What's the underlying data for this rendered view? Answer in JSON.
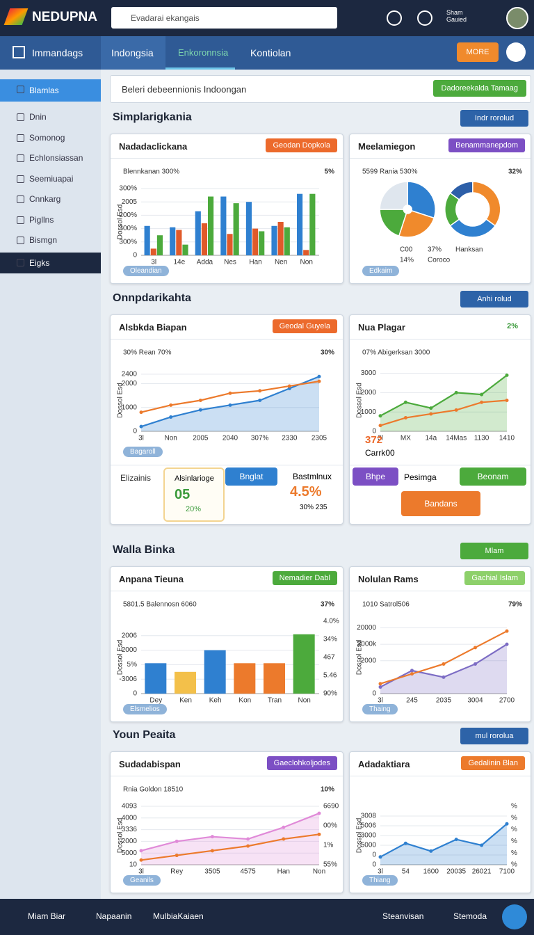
{
  "header": {
    "logo": "NEDUPNA",
    "search_placeholder": "Evadarai ekangais",
    "user": "Sham Gauied"
  },
  "nav": {
    "title": "Immandags",
    "tabs": [
      "Indongsia",
      "Enkoronnsia",
      "Kontiolan"
    ],
    "badge": "MORE"
  },
  "sidebar": {
    "items": [
      "Blamlas",
      "Dnin",
      "Somonog",
      "Echlonsiassan",
      "Seemiuapai",
      "Cnnkarg",
      "Pigllns",
      "Bismgn",
      "Eigks"
    ]
  },
  "banner": {
    "text": "Beleri debeennionis Indoongan",
    "button": "Dadoreekalda Tamaag"
  },
  "sections": [
    {
      "title": "Simplarigkania",
      "dropdown": "Indr rorolud",
      "panels": [
        {
          "title": "Nadadaclickana",
          "badge": "Geodan Dopkola",
          "badge_color": "#ec6a2c",
          "caption": "Oleandian",
          "chart": {
            "type": "bar",
            "note": "Blennkanan 300%",
            "corner": "5%",
            "ylabel": "Dossol Esd",
            "categories": [
              "3l",
              "14e",
              "Adda",
              "Nes",
              "Han",
              "Nen",
              "Non"
            ],
            "ylim": [
              0,
              5
            ],
            "yticks": [
              0,
              {
                "value": 1,
                "label": "300%"
              },
              {
                "value": 2,
                "label": "300%"
              },
              {
                "value": 3,
                "label": "200%"
              },
              {
                "value": 4,
                "label": "2005"
              },
              {
                "value": 5,
                "label": "300%"
              }
            ],
            "series": [
              {
                "color": "#2f80d0",
                "values": [
                  2.2,
                  2.1,
                  3.3,
                  4.4,
                  4.0,
                  2.2,
                  4.6
                ]
              },
              {
                "color": "#e05a2a",
                "values": [
                  0.5,
                  1.9,
                  2.4,
                  1.6,
                  2.0,
                  2.5,
                  0.4
                ]
              },
              {
                "color": "#4caa3c",
                "values": [
                  1.5,
                  0.8,
                  4.4,
                  3.9,
                  1.8,
                  2.1,
                  4.6
                ]
              }
            ]
          }
        },
        {
          "title": "Meelamiegon",
          "badge": "Benammanepdom",
          "badge_color": "#7c4fc4",
          "caption": "Edkaim",
          "chart": {
            "type": "donut",
            "note": "5599 Rania 530%",
            "corner": "32%",
            "legend": [
              "C00",
              "37%",
              "Hanksan",
              "14%",
              "Coroco"
            ],
            "series": [
              {
                "values": [
                  30,
                  25,
                  20,
                  25
                ],
                "colors": [
                  "#2f80d0",
                  "#f08a2c",
                  "#4caa3c",
                  "#dfe6ee"
                ]
              },
              {
                "values": [
                  35,
                  30,
                  20,
                  15
                ],
                "colors": [
                  "#f08a2c",
                  "#2f80d0",
                  "#4caa3c",
                  "#2d5fa8"
                ]
              }
            ]
          }
        }
      ]
    },
    {
      "title": "Onnpdarikahta",
      "dropdown": "Anhi rolud",
      "panels": [
        {
          "title": "Alsbkda Biapan",
          "badge": "Geodal Guyela",
          "badge_color": "#ec6a2c",
          "caption": "Bagaroll",
          "chart": {
            "type": "line",
            "note": "30% Rean 70%",
            "corner": "30%",
            "ylabel": "Dossol Esd",
            "categories": [
              "3l",
              "Non",
              "2005",
              "2040",
              "307%",
              "2330",
              "2305"
            ],
            "ylim": [
              0,
              2600
            ],
            "yticks": [
              0,
              1000,
              2000,
              2400
            ],
            "series": [
              {
                "color": "#2f80d0",
                "area": true,
                "values": [
                  200,
                  600,
                  900,
                  1100,
                  1300,
                  1800,
                  2300
                ]
              },
              {
                "color": "#ec7a2c",
                "values": [
                  800,
                  1100,
                  1300,
                  1600,
                  1700,
                  1900,
                  2100
                ]
              }
            ]
          },
          "widgets": {
            "label": "Elizainis",
            "card_title": "Alsinlarioge",
            "card_value": "05",
            "card_sub": "20%",
            "button": "Bnglat",
            "stat_title": "Bastmlnux",
            "stat_value": "4.5%",
            "stat_sub": "30% 235"
          }
        },
        {
          "title": "Nua Plagar",
          "badge": "2%",
          "badge_color": "#ffffff",
          "caption": "",
          "chart": {
            "type": "line",
            "note": "07% Abigerksan 3000",
            "ylabel": "Dossol Esd",
            "categories": [
              "3l",
              "MX",
              "14a",
              "14Mas",
              "1130",
              "1410"
            ],
            "ylim": [
              0,
              3200
            ],
            "yticks": [
              0,
              1000,
              2000,
              3000
            ],
            "series": [
              {
                "color": "#4caa3c",
                "area": true,
                "values": [
                  800,
                  1500,
                  1200,
                  2000,
                  1900,
                  2900
                ]
              },
              {
                "color": "#ec7a2c",
                "values": [
                  300,
                  700,
                  900,
                  1100,
                  1500,
                  1600
                ]
              }
            ]
          },
          "widgets": {
            "stat_value": "372",
            "stat_sub": "Carrk00",
            "button1": "Bhpe",
            "label": "Pesimga",
            "button2": "Beonam",
            "button3": "Bandans"
          }
        }
      ]
    },
    {
      "title": "Walla Binka",
      "dropdown": "Mlam",
      "panels": [
        {
          "title": "Anpana Tieuna",
          "badge": "Nemadier Dabl",
          "badge_color": "#4caa3c",
          "caption": "Elsmelios",
          "chart": {
            "type": "bar",
            "note": "5801.5 Balennosn 6060",
            "corner": "37%",
            "ylabel": "Dossol Esd",
            "categories": [
              "Dey",
              "Ken",
              "Keh",
              "Kon",
              "Tran",
              "Non"
            ],
            "ylim": [
              0,
              5
            ],
            "yticks": [
              0,
              {
                "value": 1,
                "label": "-3006"
              },
              {
                "value": 2,
                "label": "5%"
              },
              {
                "value": 3,
                "label": "2000"
              },
              {
                "value": 4,
                "label": "2006"
              }
            ],
            "right_labels": [
              "4.0%",
              "34%",
              "467",
              "5.46",
              "90%"
            ],
            "series": [
              {
                "colors": [
                  "#2f80d0",
                  "#f3c04a",
                  "#2f80d0",
                  "#ec7a2c",
                  "#ec7a2c",
                  "#4caa3c"
                ],
                "values": [
                  2.1,
                  1.5,
                  3.0,
                  2.1,
                  2.1,
                  4.1
                ]
              }
            ]
          }
        },
        {
          "title": "Nolulan Rams",
          "badge": "Gachial Islam",
          "badge_color": "#8dd06a",
          "caption": "Thaing",
          "chart": {
            "type": "line",
            "note": "1010 Satrol506",
            "corner": "79%",
            "ylabel": "Dossol Esd",
            "categories": [
              "3l",
              "245",
              "2035",
              "3004",
              "2700"
            ],
            "ylim": [
              0,
              22000
            ],
            "yticks": [
              0,
              {
                "value": 10000,
                "label": "2000"
              },
              {
                "value": 15000,
                "label": "2000k"
              },
              20000
            ],
            "series": [
              {
                "color": "#7c6cc4",
                "area": true,
                "values": [
                  2000,
                  7000,
                  5000,
                  9000,
                  15000
                ]
              },
              {
                "color": "#ec7a2c",
                "values": [
                  3000,
                  6000,
                  9000,
                  14000,
                  19000
                ]
              }
            ]
          }
        }
      ]
    },
    {
      "title": "Youn Peaita",
      "dropdown": "mul rorolua",
      "panels": [
        {
          "title": "Sudadabispan",
          "badge": "Gaeclohkoljodes",
          "badge_color": "#7c4fc4",
          "caption": "Geanils",
          "chart": {
            "type": "line",
            "note": "Rnia Goldon 18510",
            "corner": "10%",
            "ylabel": "Dossol Esd",
            "categories": [
              "3l",
              "Rey",
              "3505",
              "4575",
              "Han",
              "Non"
            ],
            "ylim": [
              0,
              5
            ],
            "yticks": [
              {
                "value": 0,
                "label": "10"
              },
              {
                "value": 1,
                "label": "5000"
              },
              {
                "value": 2,
                "label": "2000"
              },
              {
                "value": 3,
                "label": "3336"
              },
              {
                "value": 4,
                "label": "4000"
              },
              {
                "value": 5,
                "label": "4093"
              }
            ],
            "right_labels": [
              "6690",
              "00%",
              "1%",
              "55%"
            ],
            "series": [
              {
                "color": "#e08ad8",
                "area": true,
                "values": [
                  1.2,
                  2.0,
                  2.4,
                  2.2,
                  3.2,
                  4.4
                ]
              },
              {
                "color": "#ec7a2c",
                "values": [
                  0.4,
                  0.8,
                  1.2,
                  1.6,
                  2.2,
                  2.6
                ]
              }
            ]
          }
        },
        {
          "title": "Adadaktiara",
          "badge": "Gedalinin Blan",
          "badge_color": "#ec7a2c",
          "caption": "Thiang",
          "chart": {
            "type": "line",
            "note": "",
            "ylabel": "Dossol Esd",
            "categories": [
              "3l",
              "54",
              "1600",
              "20035",
              "26021",
              "7100"
            ],
            "ylim": [
              0,
              6
            ],
            "yticks": [
              {
                "value": 0,
                "label": "0"
              },
              {
                "value": 1,
                "label": "0"
              },
              {
                "value": 2,
                "label": "5000"
              },
              {
                "value": 3,
                "label": "3000"
              },
              {
                "value": 4,
                "label": "5006"
              },
              {
                "value": 5,
                "label": "3008"
              }
            ],
            "right_labels": [
              "%",
              "%",
              "%",
              "%",
              "%",
              "%"
            ],
            "series": [
              {
                "color": "#2f80d0",
                "area": true,
                "values": [
                  0.8,
                  2.2,
                  1.4,
                  2.6,
                  2.0,
                  4.2
                ]
              }
            ]
          }
        }
      ]
    }
  ],
  "footer": {
    "items": [
      "Miam Biar",
      "Napaanin",
      "MulbiaKaiaen",
      "Steanvisan",
      "Stemoda"
    ]
  }
}
